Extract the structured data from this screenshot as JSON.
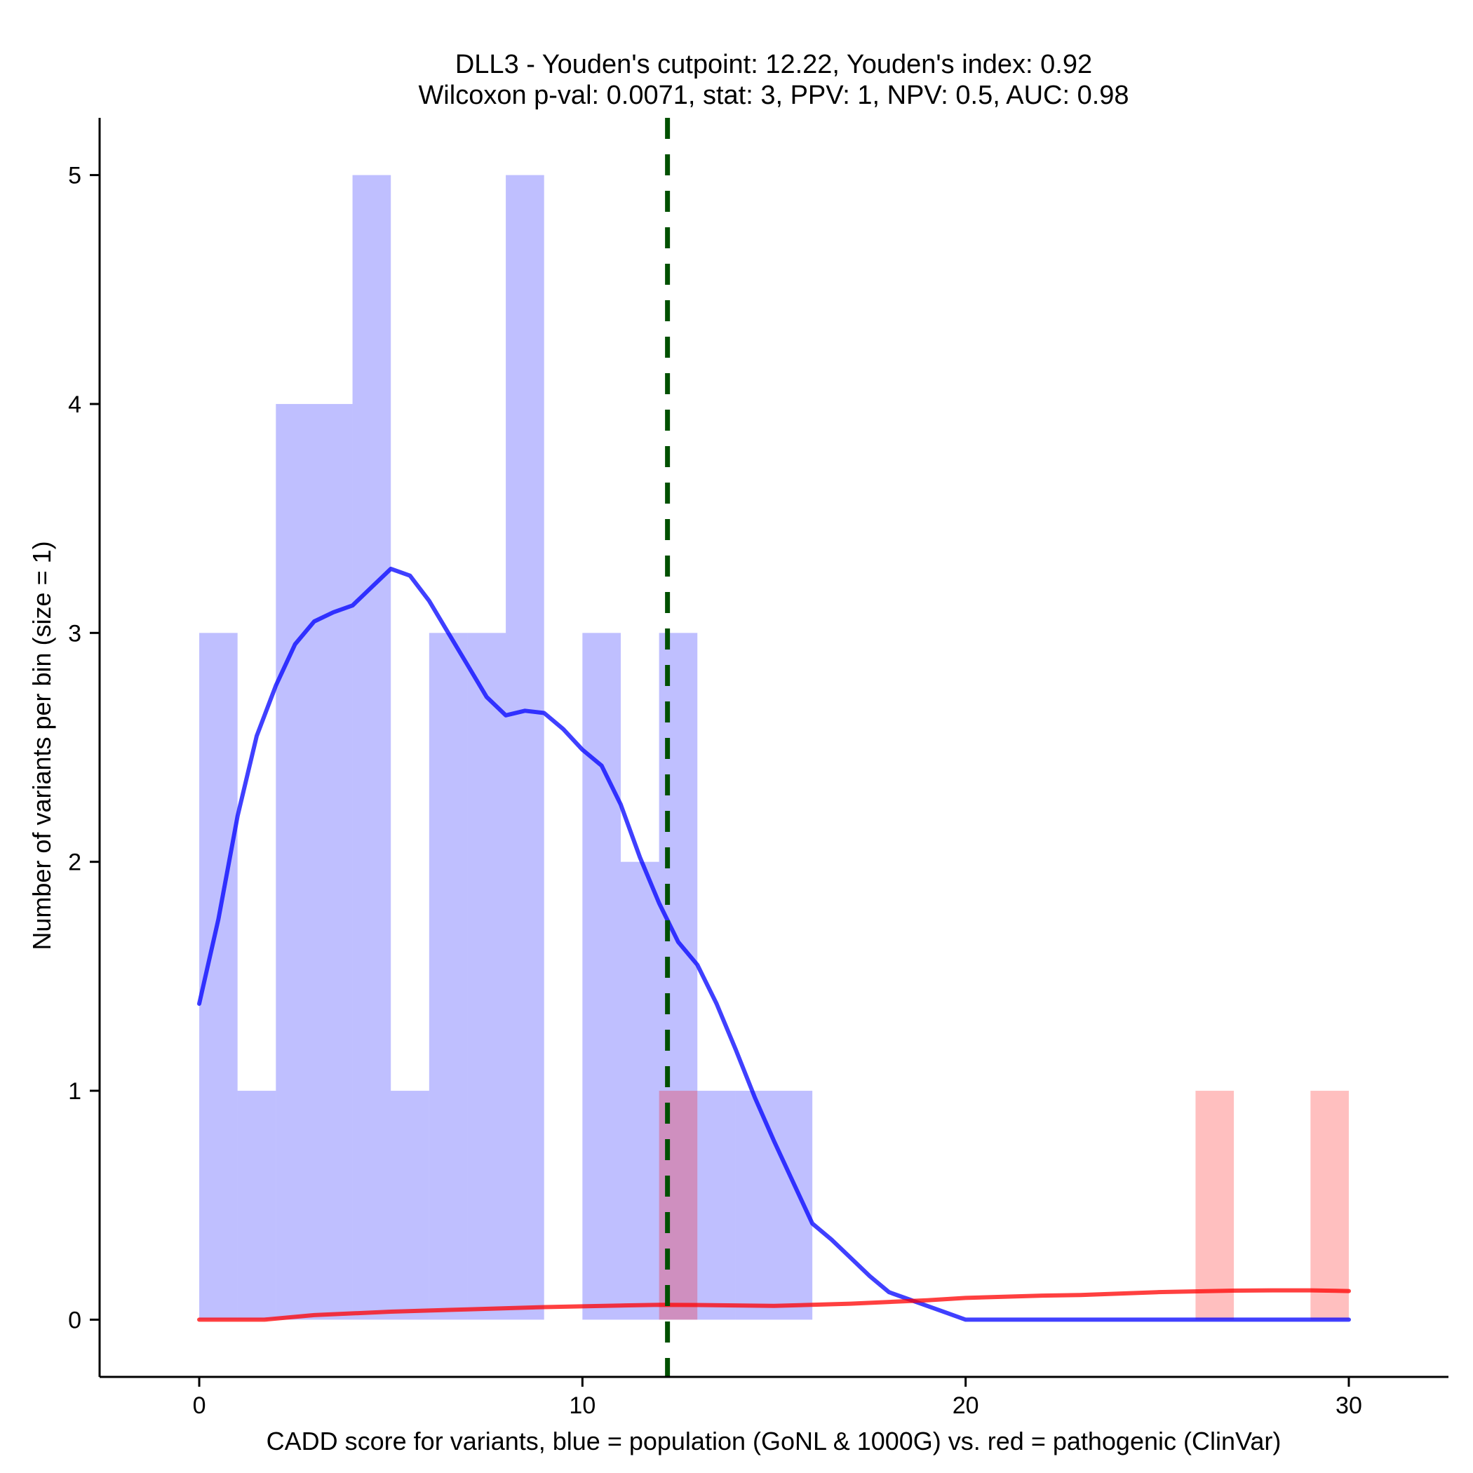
{
  "chart_data": {
    "type": "histogram",
    "title": "DLL3 - Youden's cutpoint: 12.22, Youden's index: 0.92",
    "subtitle": "Wilcoxon p-val: 0.0071, stat: 3, PPV: 1, NPV: 0.5, AUC: 0.98",
    "xlabel": "CADD score for variants, blue = population (GoNL & 1000G) vs. red = pathogenic (ClinVar)",
    "ylabel": "Number of variants per bin (size = 1)",
    "xlim": [
      -2.6,
      32.6
    ],
    "ylim": [
      -0.25,
      5.25
    ],
    "x_ticks": [
      0,
      10,
      20,
      30
    ],
    "y_ticks": [
      0,
      1,
      2,
      3,
      4,
      5
    ],
    "bin_width": 1,
    "cutpoint": 12.22,
    "series": [
      {
        "name": "population (GoNL & 1000G)",
        "color": "#0000ff",
        "bins": [
          {
            "x0": 0,
            "count": 3
          },
          {
            "x0": 1,
            "count": 1
          },
          {
            "x0": 2,
            "count": 4
          },
          {
            "x0": 3,
            "count": 4
          },
          {
            "x0": 4,
            "count": 5
          },
          {
            "x0": 5,
            "count": 1
          },
          {
            "x0": 6,
            "count": 3
          },
          {
            "x0": 7,
            "count": 3
          },
          {
            "x0": 8,
            "count": 5
          },
          {
            "x0": 10,
            "count": 3
          },
          {
            "x0": 11,
            "count": 2
          },
          {
            "x0": 12,
            "count": 3
          },
          {
            "x0": 13,
            "count": 1
          },
          {
            "x0": 14,
            "count": 1
          },
          {
            "x0": 15,
            "count": 1
          }
        ],
        "density_x": [
          0,
          0.5,
          1,
          1.5,
          2,
          2.5,
          3,
          3.5,
          4,
          4.5,
          5,
          5.5,
          6,
          6.5,
          7,
          7.5,
          8,
          8.5,
          9,
          9.5,
          10,
          10.5,
          11,
          11.5,
          12,
          12.5,
          13,
          13.5,
          14,
          14.5,
          15,
          15.5,
          16,
          16.5,
          17,
          17.5,
          18,
          18.5,
          19,
          19.5,
          20,
          22,
          25,
          28,
          30
        ],
        "density_y": [
          1.38,
          1.75,
          2.2,
          2.55,
          2.77,
          2.95,
          3.05,
          3.09,
          3.12,
          3.2,
          3.28,
          3.25,
          3.14,
          3.0,
          2.86,
          2.72,
          2.64,
          2.66,
          2.65,
          2.58,
          2.49,
          2.42,
          2.25,
          2.02,
          1.82,
          1.65,
          1.55,
          1.38,
          1.18,
          0.97,
          0.78,
          0.6,
          0.42,
          0.35,
          0.27,
          0.19,
          0.12,
          0.09,
          0.06,
          0.03,
          0.0,
          0.0,
          0.0,
          0.0,
          0.0
        ]
      },
      {
        "name": "pathogenic (ClinVar)",
        "color": "#ff0000",
        "bins": [
          {
            "x0": 12,
            "count": 1
          },
          {
            "x0": 26,
            "count": 1
          },
          {
            "x0": 29,
            "count": 1
          }
        ],
        "density_x": [
          0,
          1.7,
          3,
          5,
          7,
          9,
          11,
          12,
          13,
          15,
          17,
          19,
          20,
          22,
          23,
          25,
          27,
          28,
          29,
          30
        ],
        "density_y": [
          0.0,
          0.0,
          0.02,
          0.035,
          0.045,
          0.055,
          0.062,
          0.065,
          0.064,
          0.06,
          0.07,
          0.085,
          0.095,
          0.105,
          0.108,
          0.12,
          0.127,
          0.128,
          0.128,
          0.125
        ]
      }
    ]
  }
}
